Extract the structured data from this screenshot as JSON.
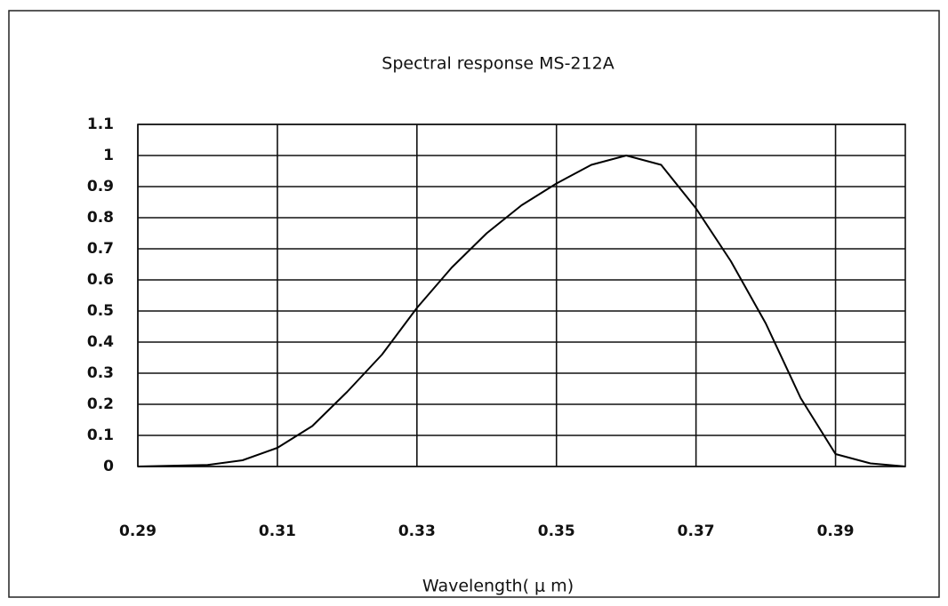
{
  "chart_data": {
    "type": "line",
    "title": "Spectral response MS-212A",
    "x_label": "Wavelength( μ m)",
    "x": [
      0.29,
      0.3,
      0.305,
      0.31,
      0.315,
      0.32,
      0.325,
      0.33,
      0.335,
      0.34,
      0.345,
      0.35,
      0.355,
      0.36,
      0.365,
      0.37,
      0.375,
      0.38,
      0.385,
      0.39,
      0.395,
      0.4
    ],
    "values": [
      0,
      0.005,
      0.02,
      0.06,
      0.13,
      0.24,
      0.36,
      0.51,
      0.64,
      0.75,
      0.84,
      0.91,
      0.97,
      1.0,
      0.97,
      0.83,
      0.66,
      0.46,
      0.22,
      0.04,
      0.01,
      0
    ],
    "color": "#000000",
    "xlim": [
      0.29,
      0.4
    ],
    "xticks": [
      0.29,
      0.31,
      0.33,
      0.35,
      0.37,
      0.39
    ],
    "ylim": [
      0,
      1.1
    ],
    "yticks": [
      0,
      0.1,
      0.2,
      0.3,
      0.4,
      0.5,
      0.6,
      0.7,
      0.8,
      0.9,
      1,
      1.1
    ],
    "grid": true
  }
}
